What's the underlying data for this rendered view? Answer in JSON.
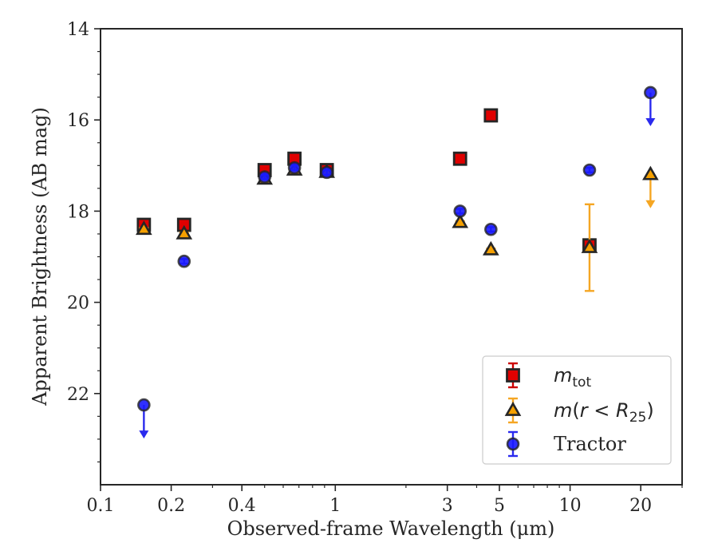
{
  "chart_data": {
    "type": "scatter",
    "xscale": "log",
    "xlim": [
      0.1,
      30
    ],
    "ylim": [
      14,
      24
    ],
    "y_inverted": true,
    "grid": false,
    "xlabel": "Observed-frame Wavelength (μm)",
    "ylabel": "Apparent Brightness (AB mag)",
    "xticks": [
      0.1,
      0.2,
      0.4,
      1,
      3,
      5,
      10,
      20
    ],
    "xtick_labels": [
      "0.1",
      "0.2",
      "0.4",
      "1",
      "3",
      "5",
      "10",
      "20"
    ],
    "yticks": [
      14,
      16,
      18,
      20,
      22
    ],
    "ytick_labels": [
      "14",
      "16",
      "18",
      "20",
      "22"
    ],
    "legend_position": "lower-right",
    "series": [
      {
        "name": "m_tot",
        "legend_label": "m_tot",
        "marker": "square",
        "color": "#e00000",
        "edgecolor": "#262626",
        "errcolor": "#cc0000",
        "points": [
          {
            "x": 0.153,
            "y": 18.3,
            "err": 0.05
          },
          {
            "x": 0.227,
            "y": 18.3,
            "err": 0.05
          },
          {
            "x": 0.5,
            "y": 17.1,
            "err": 0.05
          },
          {
            "x": 0.67,
            "y": 16.85,
            "err": 0.05
          },
          {
            "x": 0.92,
            "y": 17.1,
            "err": 0.05
          },
          {
            "x": 3.4,
            "y": 16.85,
            "err": 0.05
          },
          {
            "x": 4.6,
            "y": 15.9,
            "err": 0.05
          },
          {
            "x": 12.1,
            "y": 18.75,
            "err": 0.05
          }
        ]
      },
      {
        "name": "m(r<R25)",
        "legend_label": "m(r<R25)",
        "marker": "triangle",
        "color": "#f5a000",
        "edgecolor": "#262626",
        "errcolor": "#f5a623",
        "points": [
          {
            "x": 0.153,
            "y": 18.4,
            "err": 0.03
          },
          {
            "x": 0.227,
            "y": 18.5,
            "err": 0.03
          },
          {
            "x": 0.5,
            "y": 17.3,
            "err": 0.03
          },
          {
            "x": 0.67,
            "y": 17.1,
            "err": 0.03
          },
          {
            "x": 0.92,
            "y": 17.15,
            "err": 0.03
          },
          {
            "x": 3.4,
            "y": 18.25,
            "err": 0.03
          },
          {
            "x": 4.6,
            "y": 18.85,
            "err": 0.03
          },
          {
            "x": 12.1,
            "y": 18.8,
            "err": 0.95
          },
          {
            "x": 22.0,
            "y": 17.2,
            "upper_limit": true
          }
        ]
      },
      {
        "name": "Tractor",
        "legend_label": "Tractor",
        "marker": "circle",
        "color": "#1a1aff",
        "edgecolor": "#262626",
        "errcolor": "#2a2aee",
        "points": [
          {
            "x": 0.153,
            "y": 22.25,
            "upper_limit": true
          },
          {
            "x": 0.227,
            "y": 19.1,
            "err": 0.05
          },
          {
            "x": 0.5,
            "y": 17.25,
            "err": 0.05
          },
          {
            "x": 0.67,
            "y": 17.05,
            "err": 0.05
          },
          {
            "x": 0.92,
            "y": 17.15,
            "err": 0.05
          },
          {
            "x": 3.4,
            "y": 18.0,
            "err": 0.05
          },
          {
            "x": 4.6,
            "y": 18.4,
            "err": 0.05
          },
          {
            "x": 12.1,
            "y": 17.1,
            "err": 0.05
          },
          {
            "x": 22.0,
            "y": 15.4,
            "upper_limit": true
          }
        ]
      }
    ]
  }
}
